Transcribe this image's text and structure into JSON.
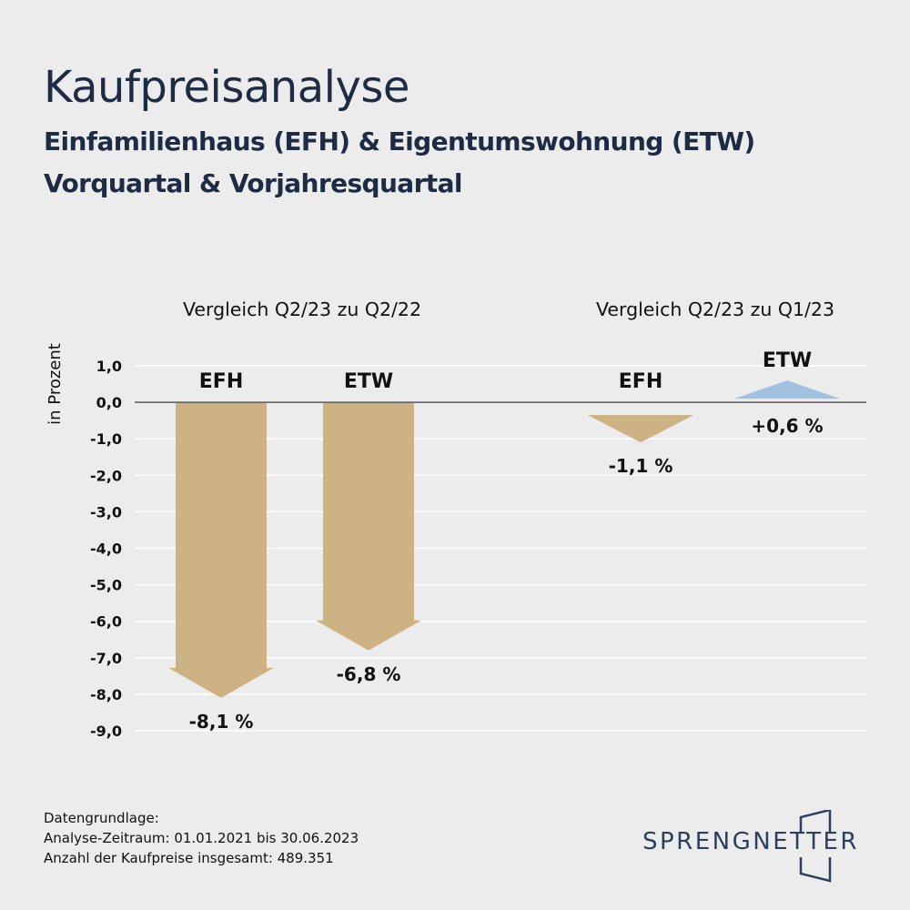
{
  "title": "Kaufpreisanalyse",
  "subtitle_1": "Einfamilienhaus (EFH) & Eigentumswohnung (ETW)",
  "subtitle_2": "Vorquartal & Vorjahresquartal",
  "chart_data": {
    "type": "bar",
    "ylabel": "in Prozent",
    "ylim": [
      -9.0,
      1.0
    ],
    "yticks": [
      "1,0",
      "0,0",
      "-1,0",
      "-2,0",
      "-3,0",
      "-4,0",
      "-5,0",
      "-6,0",
      "-7,0",
      "-8,0",
      "-9,0"
    ],
    "grid": true,
    "groups": [
      {
        "title": "Vergleich Q2/23 zu Q2/22",
        "bars": [
          {
            "category": "EFH",
            "value": -8.1,
            "label": "-8,1 %",
            "color": "#cdb283"
          },
          {
            "category": "ETW",
            "value": -6.8,
            "label": "-6,8 %",
            "color": "#cdb283"
          }
        ]
      },
      {
        "title": "Vergleich Q2/23 zu Q1/23",
        "bars": [
          {
            "category": "EFH",
            "value": -1.1,
            "label": "-1,1 %",
            "color": "#cdb283"
          },
          {
            "category": "ETW",
            "value": 0.6,
            "label": "+0,6 %",
            "color": "#a2c1e0"
          }
        ]
      }
    ]
  },
  "footer": {
    "line1": "Datengrundlage:",
    "line2": "Analyse-Zeitraum: 01.01.2021 bis 30.06.2023",
    "line3": "Anzahl der Kaufpreise insgesamt: 489.351"
  },
  "logo": {
    "text": "SPRENGNETTER",
    "color": "#2d3f5e"
  }
}
